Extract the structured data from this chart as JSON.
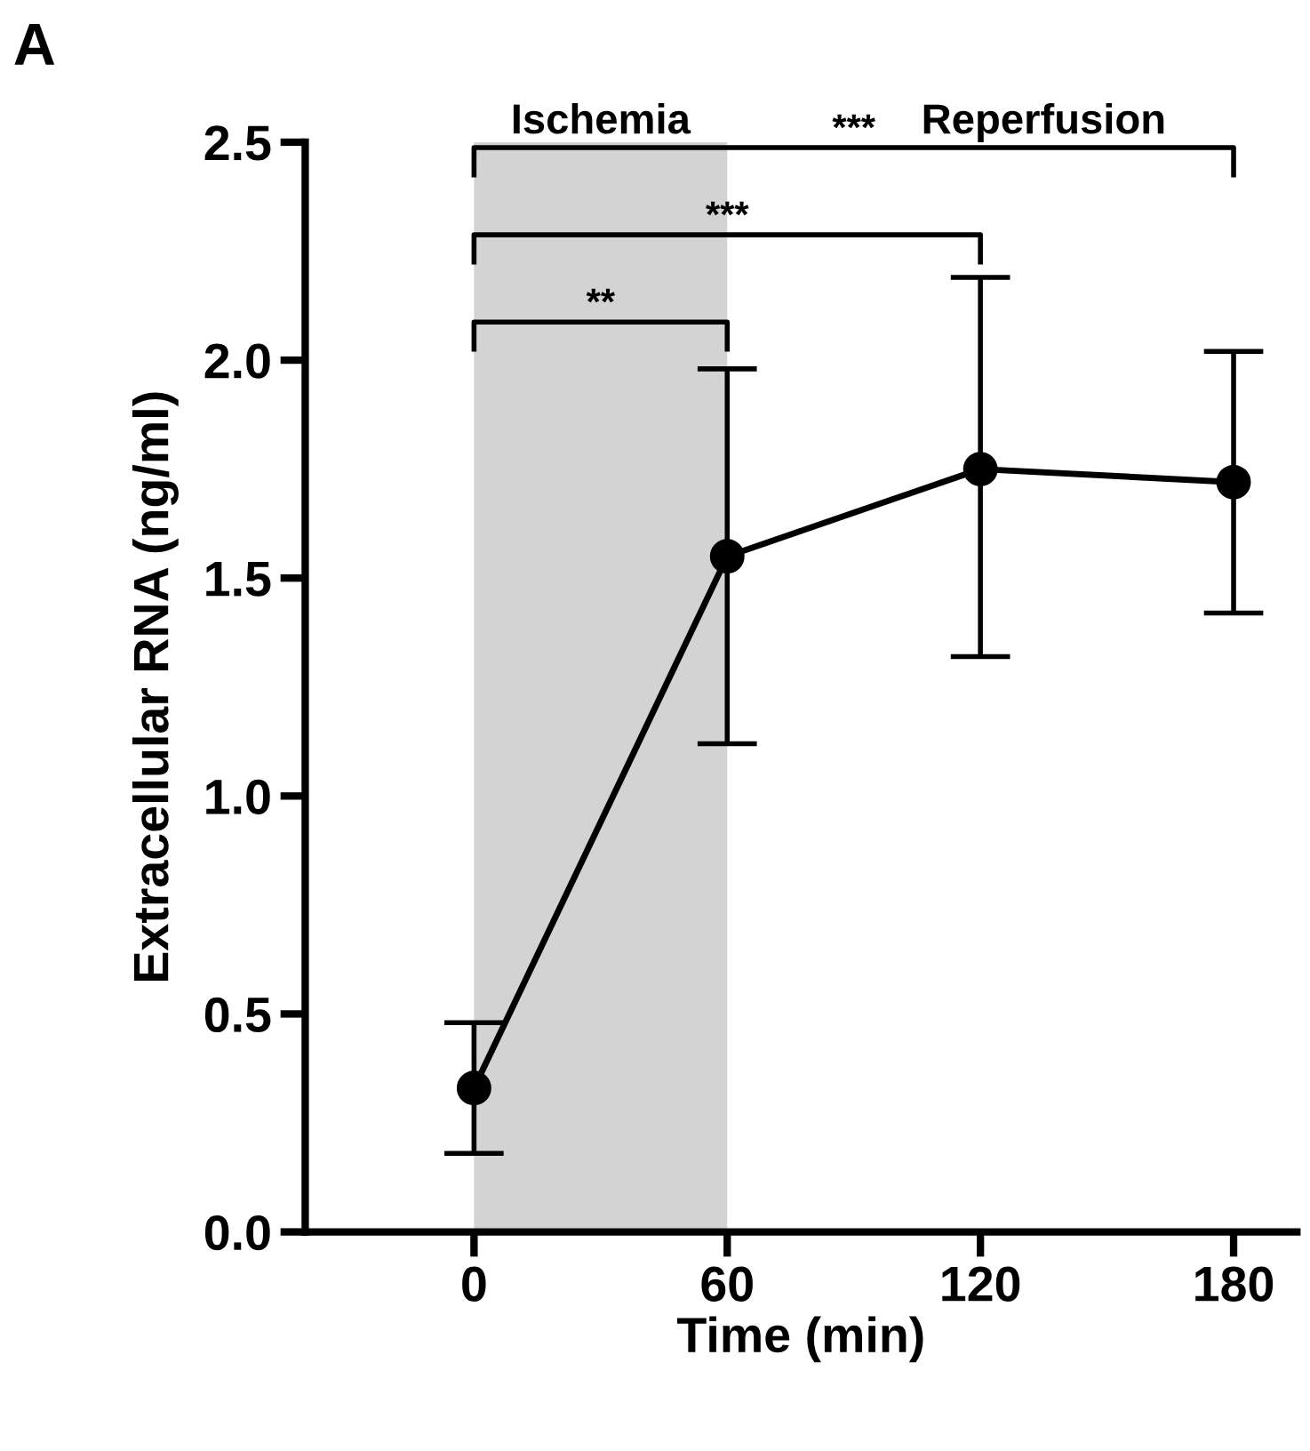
{
  "chart_data": {
    "type": "line",
    "xlabel": "Time (min)",
    "ylabel": "Extracellular RNA (ng/ml)",
    "x": [
      0,
      60,
      120,
      180
    ],
    "series": [
      {
        "color": "#000000",
        "values": [
          0.33,
          1.55,
          1.75,
          1.72
        ],
        "errors": [
          [
            0.18,
            0.48
          ],
          [
            1.12,
            1.98
          ],
          [
            1.32,
            2.19
          ],
          [
            1.42,
            2.02
          ]
        ]
      }
    ],
    "xlim": [
      -40,
      195
    ],
    "xticks": [
      0,
      60,
      120,
      180
    ],
    "ylim": [
      0,
      2.5
    ],
    "yticks": [
      {
        "value": 0,
        "label": "0.0"
      },
      {
        "value": 0.5,
        "label": "0.5"
      },
      {
        "value": 1,
        "label": "1.0"
      },
      {
        "value": 1.5,
        "label": "1.5"
      },
      {
        "value": 2,
        "label": "2.0"
      },
      {
        "value": 2.5,
        "label": "2.5"
      }
    ],
    "bands": [
      {
        "axis": "x",
        "from": 0,
        "to": 60,
        "label": "Ischemia",
        "color": "#d3d3d3"
      }
    ],
    "annotations": [
      "A",
      "Reperfusion",
      "**",
      "***",
      "***"
    ],
    "marker": "circle",
    "line_style": "solid",
    "grid": false,
    "legend": false
  }
}
